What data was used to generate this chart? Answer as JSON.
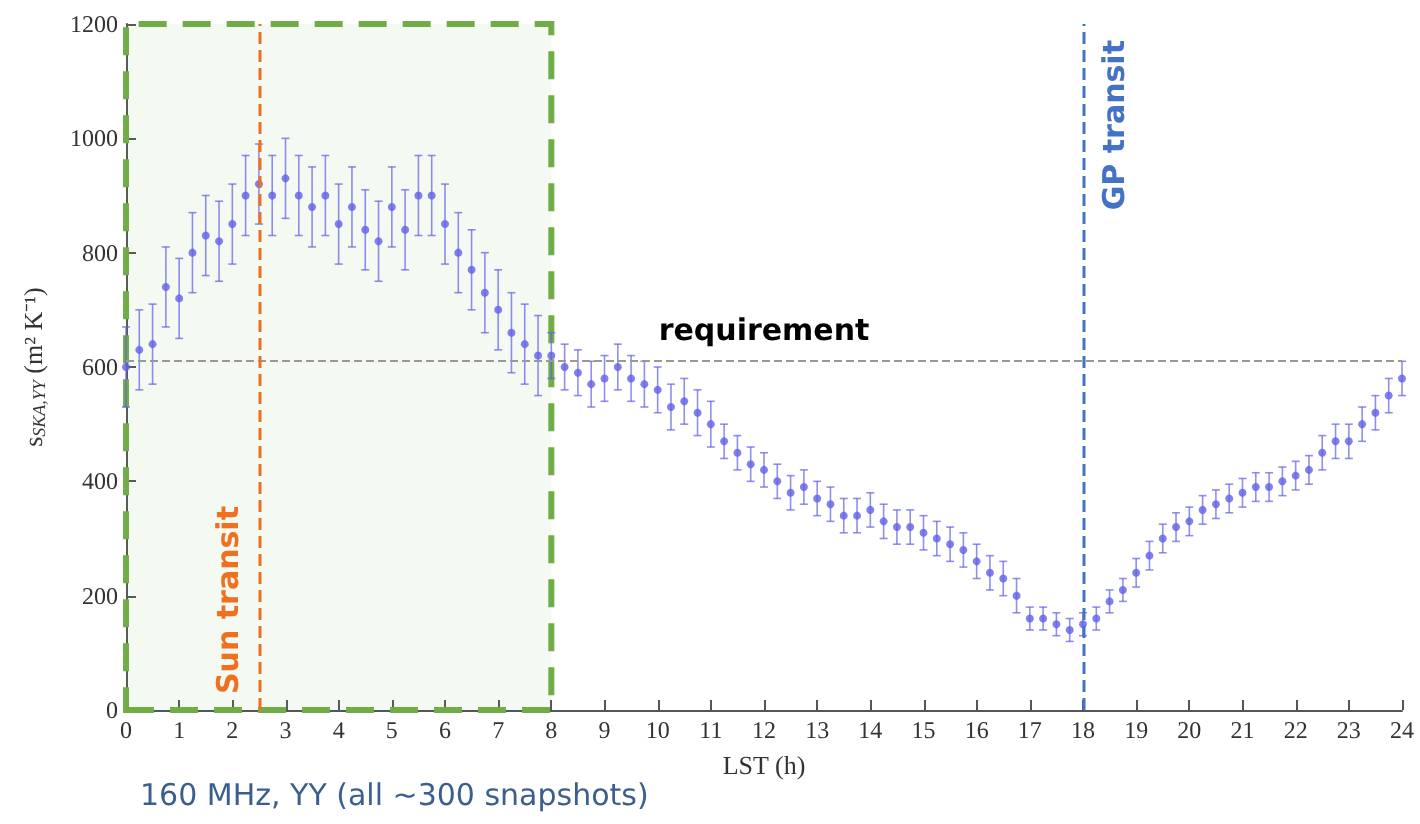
{
  "chart_data": {
    "type": "scatter",
    "xlabel": "LST (h)",
    "ylabel": "s$_{SKA,YY}$ (m² K⁻¹)",
    "annotations": [
      "160 MHz, YY (all ~300 snapshots)"
    ],
    "xlim": [
      0,
      24
    ],
    "xticks": [
      0,
      1,
      2,
      3,
      4,
      5,
      6,
      7,
      8,
      9,
      10,
      11,
      12,
      13,
      14,
      15,
      16,
      17,
      18,
      19,
      20,
      21,
      22,
      23,
      24
    ],
    "ylim": [
      0,
      1200
    ],
    "yticks": [
      0,
      200,
      400,
      600,
      800,
      1000,
      1200
    ],
    "grid": false,
    "marker": "circle",
    "series": [
      {
        "color": "#6060e8",
        "x": [
          0,
          0.25,
          0.5,
          0.75,
          1,
          1.25,
          1.5,
          1.75,
          2,
          2.25,
          2.5,
          2.75,
          3,
          3.25,
          3.5,
          3.75,
          4,
          4.25,
          4.5,
          4.75,
          5,
          5.25,
          5.5,
          5.75,
          6,
          6.25,
          6.5,
          6.75,
          7,
          7.25,
          7.5,
          7.75,
          8,
          8.25,
          8.5,
          8.75,
          9,
          9.25,
          9.5,
          9.75,
          10,
          10.25,
          10.5,
          10.75,
          11,
          11.25,
          11.5,
          11.75,
          12,
          12.25,
          12.5,
          12.75,
          13,
          13.25,
          13.5,
          13.75,
          14,
          14.25,
          14.5,
          14.75,
          15,
          15.25,
          15.5,
          15.75,
          16,
          16.25,
          16.5,
          16.75,
          17,
          17.25,
          17.5,
          17.75,
          18,
          18.25,
          18.5,
          18.75,
          19,
          19.25,
          19.5,
          19.75,
          20,
          20.25,
          20.5,
          20.75,
          21,
          21.25,
          21.5,
          21.75,
          22,
          22.25,
          22.5,
          22.75,
          23,
          23.25,
          23.5,
          23.75,
          24
        ],
        "values": [
          600,
          630,
          640,
          740,
          720,
          800,
          830,
          820,
          850,
          900,
          920,
          900,
          930,
          900,
          880,
          900,
          850,
          880,
          840,
          820,
          880,
          840,
          900,
          900,
          850,
          800,
          770,
          730,
          700,
          660,
          640,
          620,
          620,
          600,
          590,
          570,
          580,
          600,
          580,
          570,
          560,
          530,
          540,
          520,
          500,
          470,
          450,
          430,
          420,
          400,
          380,
          390,
          370,
          360,
          340,
          340,
          350,
          330,
          320,
          320,
          310,
          300,
          290,
          280,
          260,
          240,
          230,
          200,
          160,
          160,
          150,
          140,
          150,
          160,
          190,
          210,
          240,
          270,
          300,
          320,
          330,
          350,
          360,
          370,
          380,
          390,
          390,
          400,
          410,
          420,
          450,
          470,
          470,
          500,
          520,
          550,
          580
        ],
        "errors": [
          70,
          70,
          70,
          70,
          70,
          70,
          70,
          70,
          70,
          70,
          70,
          70,
          70,
          70,
          70,
          70,
          70,
          70,
          70,
          70,
          70,
          70,
          70,
          70,
          70,
          70,
          70,
          70,
          70,
          70,
          70,
          70,
          40,
          40,
          40,
          40,
          40,
          40,
          40,
          40,
          40,
          40,
          40,
          40,
          40,
          30,
          30,
          30,
          30,
          30,
          30,
          30,
          30,
          30,
          30,
          30,
          30,
          30,
          30,
          30,
          30,
          30,
          30,
          30,
          30,
          30,
          30,
          30,
          20,
          20,
          20,
          20,
          20,
          20,
          20,
          20,
          25,
          25,
          25,
          25,
          25,
          25,
          25,
          25,
          25,
          25,
          25,
          25,
          25,
          25,
          30,
          30,
          30,
          30,
          30,
          30,
          30
        ]
      }
    ],
    "ref_lines": [
      {
        "axis": "y",
        "value": 610,
        "label": "requirement",
        "color": "#999999",
        "line_style": "dashed"
      },
      {
        "axis": "x",
        "value": 2.5,
        "label": "Sun transit",
        "color": "#f07020",
        "line_style": "dashed"
      },
      {
        "axis": "x",
        "value": 18,
        "label": "GP transit",
        "color": "#4472c4",
        "line_style": "dashed"
      }
    ],
    "bands": [
      {
        "axis": "x",
        "from": 0,
        "to": 8,
        "color": "#70ad47"
      }
    ]
  }
}
